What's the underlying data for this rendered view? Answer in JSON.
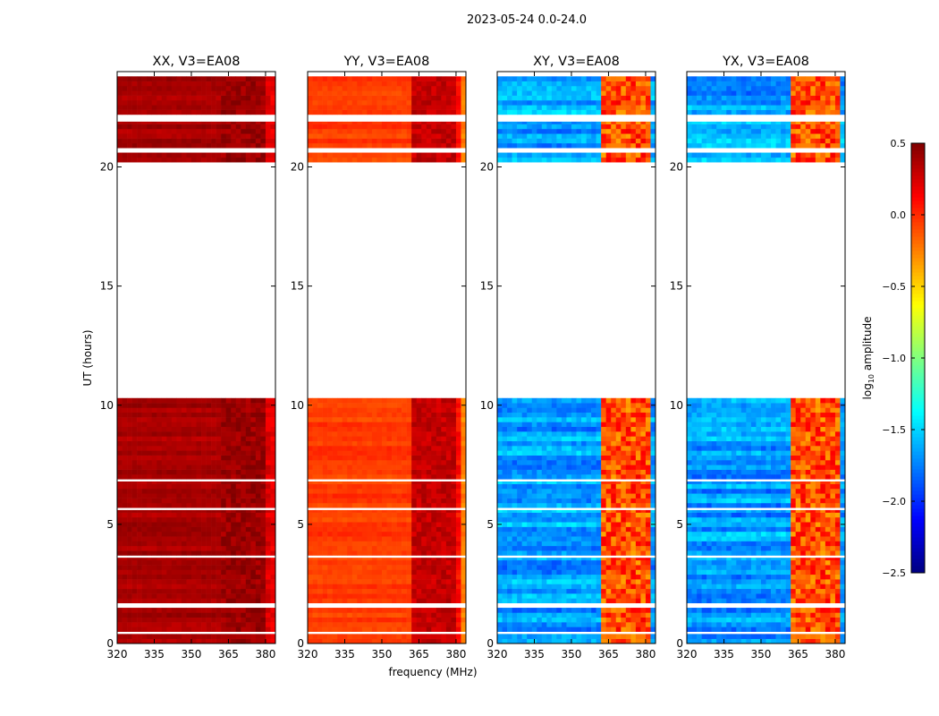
{
  "chart_data": {
    "type": "heatmap",
    "title": "2023-05-24 0.0-24.0",
    "xlabel": "frequency (MHz)",
    "ylabel": "UT (hours)",
    "xlim": [
      320,
      384
    ],
    "ylim": [
      0,
      24
    ],
    "xticks": [
      "320",
      "335",
      "350",
      "365",
      "380"
    ],
    "xtick_values": [
      320,
      335,
      350,
      365,
      380
    ],
    "yticks": [
      "0",
      "5",
      "10",
      "15",
      "20"
    ],
    "ytick_values": [
      0,
      5,
      10,
      15,
      20
    ],
    "time_bin_hours": 0.2,
    "freq_bin_MHz": 2,
    "data_segments_hours": [
      [
        0.0,
        0.4
      ],
      [
        0.5,
        1.5
      ],
      [
        1.7,
        3.6
      ],
      [
        3.7,
        5.6
      ],
      [
        5.7,
        6.8
      ],
      [
        6.9,
        10.3
      ],
      [
        20.2,
        20.6
      ],
      [
        20.8,
        21.9
      ],
      [
        22.2,
        23.8
      ]
    ],
    "panels": [
      {
        "title": "XX, V3=EA08",
        "base_log_amp": 0.38,
        "band_log_amp": 0.42,
        "row_variation": 0.12
      },
      {
        "title": "YY, V3=EA08",
        "base_log_amp": -0.05,
        "band_log_amp": 0.3,
        "row_variation": 0.12
      },
      {
        "title": "XY, V3=EA08",
        "base_log_amp": -1.65,
        "band_log_amp": -0.1,
        "row_variation": 0.35
      },
      {
        "title": "YX, V3=EA08",
        "base_log_amp": -1.65,
        "band_log_amp": -0.1,
        "row_variation": 0.35
      }
    ],
    "bright_band_MHz": [
      362,
      381
    ],
    "colorbar": {
      "label": "log10 amplitude",
      "range": [
        -2.5,
        0.5
      ],
      "ticks": [
        "0.5",
        "0.0",
        "−0.5",
        "−1.0",
        "−1.5",
        "−2.0",
        "−2.5"
      ],
      "tick_values": [
        0.5,
        0.0,
        -0.5,
        -1.0,
        -1.5,
        -2.0,
        -2.5
      ],
      "colormap": "jet"
    }
  }
}
